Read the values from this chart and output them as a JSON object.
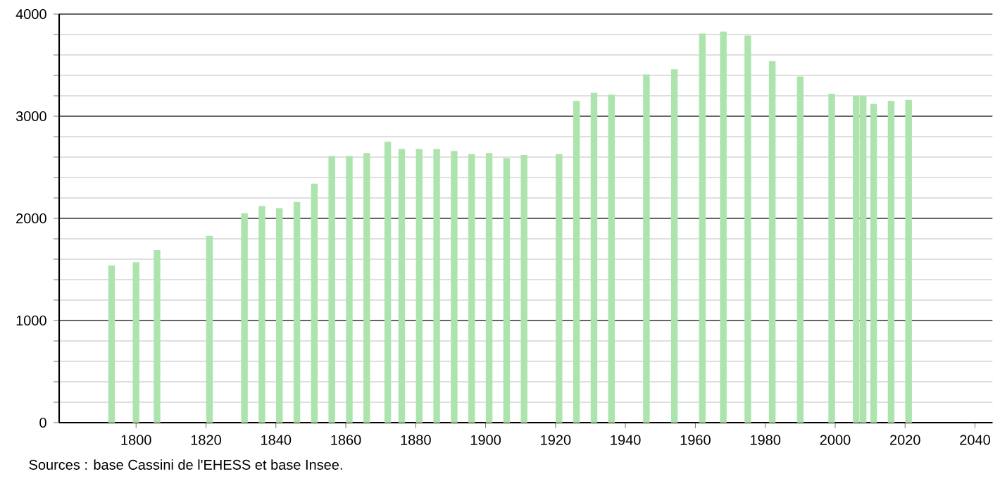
{
  "chart_data": {
    "type": "bar",
    "x": [
      1793,
      1800,
      1806,
      1821,
      1831,
      1836,
      1841,
      1846,
      1851,
      1856,
      1861,
      1866,
      1872,
      1876,
      1881,
      1886,
      1891,
      1896,
      1901,
      1906,
      1911,
      1921,
      1926,
      1931,
      1936,
      1946,
      1954,
      1962,
      1968,
      1975,
      1982,
      1990,
      1999,
      2006,
      2008,
      2011,
      2016,
      2021
    ],
    "values": [
      1540,
      1570,
      1690,
      1830,
      2050,
      2120,
      2100,
      2160,
      2340,
      2610,
      2610,
      2640,
      2750,
      2680,
      2680,
      2680,
      2660,
      2630,
      2640,
      2590,
      2620,
      2630,
      3150,
      3230,
      3210,
      3410,
      3460,
      3810,
      3830,
      3790,
      3540,
      3390,
      3220,
      3200,
      3200,
      3120,
      3150,
      3160
    ],
    "color": "#ade4ad",
    "xlim": [
      1778,
      2045
    ],
    "ylim": [
      0,
      4000
    ],
    "xticks": [
      1800,
      1820,
      1840,
      1860,
      1880,
      1900,
      1920,
      1940,
      1960,
      1980,
      2000,
      2020,
      2040
    ],
    "yticks": [
      0,
      1000,
      2000,
      3000,
      4000
    ],
    "grid": "y",
    "annotations": [
      "Sources : base Cassini de l'EHESS et base Insee."
    ]
  }
}
